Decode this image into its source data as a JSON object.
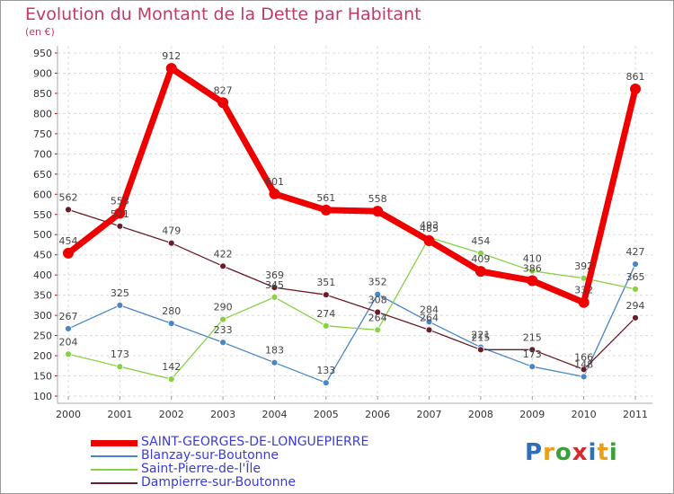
{
  "title": "Evolution du Montant de la Dette par Habitant",
  "subtitle": "(en €)",
  "brand": "Proxiti",
  "chart_data": {
    "type": "line",
    "categories": [
      "2000",
      "2001",
      "2002",
      "2003",
      "2004",
      "2005",
      "2006",
      "2007",
      "2008",
      "2009",
      "2010",
      "2011"
    ],
    "ylim": [
      100,
      950
    ],
    "yticks": [
      100,
      150,
      200,
      250,
      300,
      350,
      400,
      450,
      500,
      550,
      600,
      650,
      700,
      750,
      800,
      850,
      900,
      950
    ],
    "grid": true,
    "legend_position": "bottom",
    "series": [
      {
        "name": "SAINT-GEORGES-DE-LONGUEPIERRE",
        "color": "#ee0000",
        "values": [
          454,
          553,
          912,
          827,
          601,
          561,
          558,
          485,
          409,
          386,
          332,
          861
        ]
      },
      {
        "name": "Blanzay-sur-Boutonne",
        "color": "#4a86c5",
        "values": [
          267,
          325,
          280,
          233,
          183,
          133,
          352,
          284,
          221,
          173,
          148,
          427
        ]
      },
      {
        "name": "Saint-Pierre-de-l'Île",
        "color": "#88d045",
        "values": [
          204,
          173,
          142,
          290,
          345,
          274,
          264,
          493,
          454,
          410,
          392,
          365
        ]
      },
      {
        "name": "Dampierre-sur-Boutonne",
        "color": "#6b1c28",
        "values": [
          562,
          521,
          479,
          422,
          369,
          351,
          308,
          264,
          215,
          215,
          166,
          294
        ]
      }
    ],
    "data_labels": [
      [
        "454",
        "553",
        "912",
        "827",
        "601",
        "561",
        "558",
        "485",
        "409",
        "386",
        "332",
        "861"
      ],
      [
        "267",
        "325",
        "280",
        "233",
        "183",
        "133",
        "352",
        "284",
        "221",
        "173",
        "148",
        "427"
      ],
      [
        "204",
        "173",
        "142",
        "290",
        "345",
        "274",
        "264",
        "493",
        "454",
        "410",
        "392",
        "365"
      ],
      [
        "562",
        "521",
        "479",
        "422",
        "369",
        "351",
        "308",
        "264",
        "215",
        "215",
        "166",
        "294"
      ]
    ]
  }
}
